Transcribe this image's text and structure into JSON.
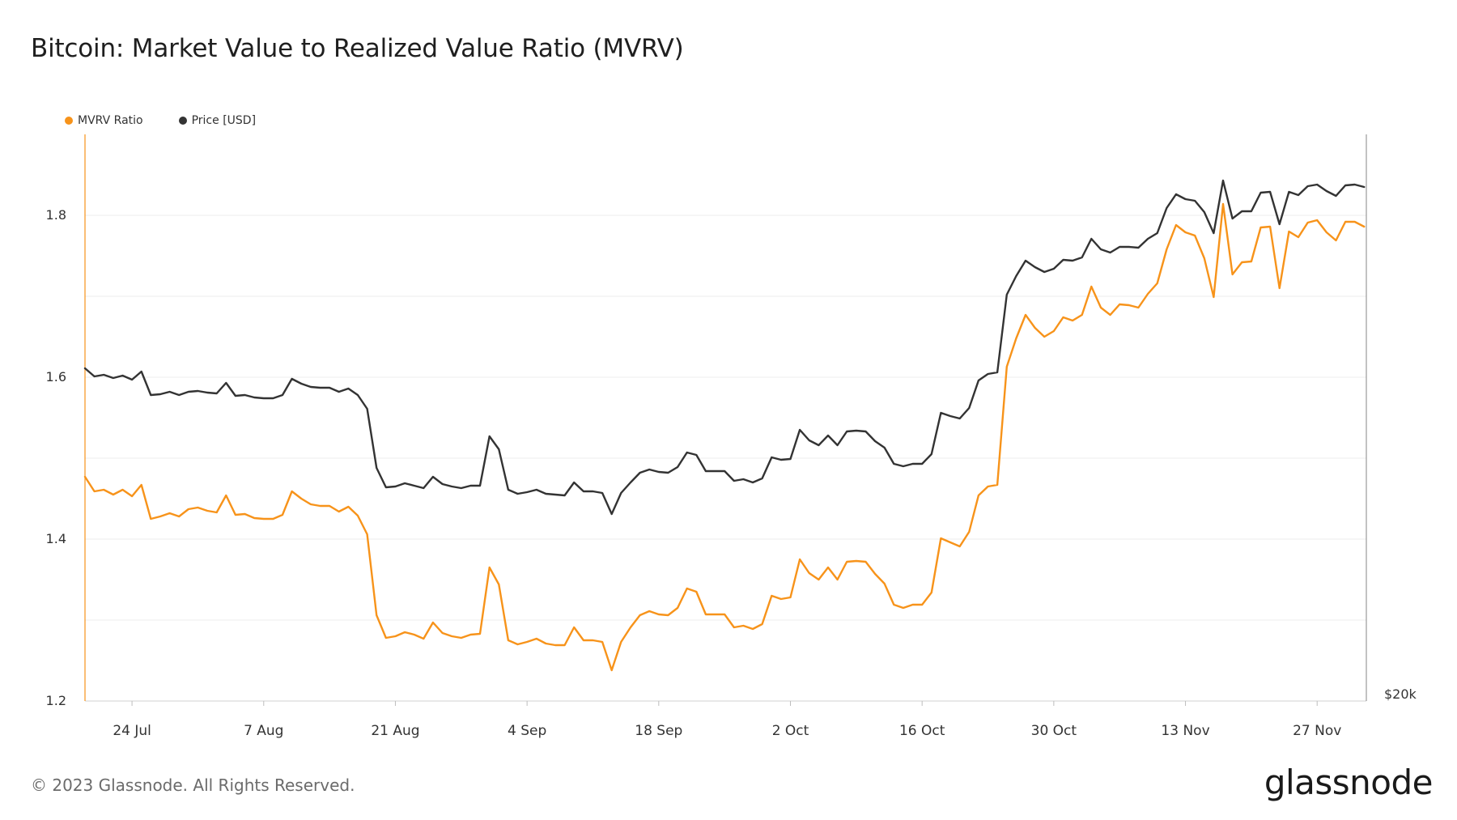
{
  "title": "Bitcoin: Market Value to Realized Value Ratio (MVRV)",
  "legend": [
    {
      "label": "MVRV Ratio",
      "color": "#f7931a"
    },
    {
      "label": "Price [USD]",
      "color": "#333333"
    }
  ],
  "footer": "© 2023 Glassnode. All Rights Reserved.",
  "logo": "glassnode",
  "chart_data": {
    "type": "line",
    "title": "Bitcoin: Market Value to Realized Value Ratio (MVRV)",
    "x_start": "2023-07-19",
    "x_tick_labels": [
      "24 Jul",
      "7 Aug",
      "21 Aug",
      "4 Sep",
      "18 Sep",
      "2 Oct",
      "16 Oct",
      "30 Oct",
      "13 Nov",
      "27 Nov"
    ],
    "x_tick_dates": [
      "2023-07-24",
      "2023-08-07",
      "2023-08-21",
      "2023-09-04",
      "2023-09-18",
      "2023-10-02",
      "2023-10-16",
      "2023-10-30",
      "2023-11-13",
      "2023-11-27"
    ],
    "left_axis": {
      "ylim": [
        1.2,
        1.9
      ],
      "ticks": [
        "1.2",
        "1.4",
        "1.6",
        "1.8"
      ]
    },
    "right_axis": {
      "ticks": [
        "$20k"
      ]
    },
    "grid": true,
    "legend_position": "top-left",
    "series": [
      {
        "name": "MVRV Ratio",
        "color": "#f7931a",
        "axis": "left",
        "values": [
          1.477,
          1.459,
          1.461,
          1.455,
          1.461,
          1.453,
          1.467,
          1.425,
          1.428,
          1.432,
          1.428,
          1.437,
          1.439,
          1.435,
          1.433,
          1.454,
          1.43,
          1.431,
          1.426,
          1.425,
          1.425,
          1.43,
          1.459,
          1.45,
          1.443,
          1.441,
          1.441,
          1.434,
          1.44,
          1.429,
          1.406,
          1.306,
          1.278,
          1.28,
          1.285,
          1.282,
          1.277,
          1.297,
          1.284,
          1.28,
          1.278,
          1.282,
          1.283,
          1.365,
          1.344,
          1.275,
          1.27,
          1.273,
          1.277,
          1.271,
          1.269,
          1.269,
          1.291,
          1.275,
          1.275,
          1.273,
          1.238,
          1.273,
          1.291,
          1.306,
          1.311,
          1.307,
          1.306,
          1.315,
          1.339,
          1.335,
          1.307,
          1.307,
          1.307,
          1.291,
          1.293,
          1.289,
          1.295,
          1.33,
          1.326,
          1.328,
          1.375,
          1.358,
          1.35,
          1.365,
          1.35,
          1.372,
          1.373,
          1.372,
          1.357,
          1.345,
          1.319,
          1.315,
          1.319,
          1.319,
          1.334,
          1.401,
          1.396,
          1.391,
          1.409,
          1.454,
          1.465,
          1.467,
          1.613,
          1.648,
          1.677,
          1.661,
          1.65,
          1.657,
          1.674,
          1.67,
          1.677,
          1.712,
          1.686,
          1.677,
          1.69,
          1.689,
          1.686,
          1.703,
          1.716,
          1.758,
          1.788,
          1.779,
          1.775,
          1.747,
          1.699,
          1.814,
          1.727,
          1.742,
          1.743,
          1.785,
          1.786,
          1.71,
          1.78,
          1.773,
          1.791,
          1.794,
          1.779,
          1.769,
          1.792,
          1.792,
          1.786
        ]
      },
      {
        "name": "Price [USD]",
        "color": "#333333",
        "axis": "right",
        "values": [
          1.611,
          1.601,
          1.603,
          1.599,
          1.602,
          1.597,
          1.607,
          1.578,
          1.579,
          1.582,
          1.578,
          1.582,
          1.583,
          1.581,
          1.58,
          1.593,
          1.577,
          1.578,
          1.575,
          1.574,
          1.574,
          1.578,
          1.598,
          1.592,
          1.588,
          1.587,
          1.587,
          1.582,
          1.586,
          1.578,
          1.561,
          1.488,
          1.464,
          1.465,
          1.469,
          1.466,
          1.463,
          1.477,
          1.468,
          1.465,
          1.463,
          1.466,
          1.466,
          1.527,
          1.511,
          1.461,
          1.456,
          1.458,
          1.461,
          1.456,
          1.455,
          1.454,
          1.47,
          1.459,
          1.459,
          1.457,
          1.431,
          1.457,
          1.47,
          1.482,
          1.486,
          1.483,
          1.482,
          1.489,
          1.507,
          1.504,
          1.484,
          1.484,
          1.484,
          1.472,
          1.474,
          1.47,
          1.475,
          1.501,
          1.498,
          1.499,
          1.535,
          1.522,
          1.516,
          1.528,
          1.516,
          1.533,
          1.534,
          1.533,
          1.521,
          1.513,
          1.493,
          1.49,
          1.493,
          1.493,
          1.505,
          1.556,
          1.552,
          1.549,
          1.562,
          1.596,
          1.604,
          1.606,
          1.702,
          1.725,
          1.744,
          1.736,
          1.73,
          1.734,
          1.745,
          1.744,
          1.748,
          1.771,
          1.758,
          1.754,
          1.761,
          1.761,
          1.76,
          1.771,
          1.778,
          1.809,
          1.826,
          1.82,
          1.818,
          1.804,
          1.778,
          1.843,
          1.796,
          1.805,
          1.805,
          1.828,
          1.829,
          1.789,
          1.829,
          1.825,
          1.836,
          1.838,
          1.83,
          1.824,
          1.837,
          1.838,
          1.835
        ]
      }
    ]
  }
}
